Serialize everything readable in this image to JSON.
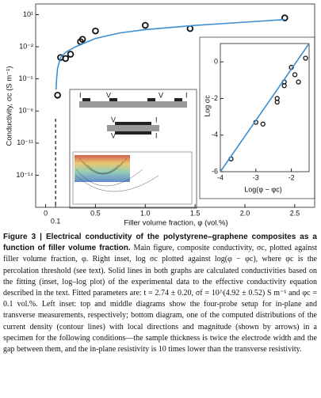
{
  "chart_data": [
    {
      "type": "scatter",
      "ylabel": "Conductivity, σc (S m⁻¹)",
      "xlabel": "Filler volume fraction, φ (vol.%)",
      "xlim": [
        -0.1,
        2.7
      ],
      "ylim": [
        1e-17,
        100
      ],
      "ylog": true,
      "xticks": [
        0,
        0.1,
        0.5,
        {
          "value": 1,
          "label": "1.0"
        },
        1.5,
        {
          "value": 2,
          "label": "2.0"
        },
        2.5
      ],
      "yticks": [
        {
          "value": 10,
          "label": "10¹"
        },
        {
          "value": 0.01,
          "label": "10⁻²"
        },
        {
          "value": 1e-05,
          "label": "10⁻⁵"
        },
        {
          "value": 1e-08,
          "label": "10⁻⁸"
        },
        {
          "value": 1e-11,
          "label": "10⁻¹¹"
        },
        {
          "value": 1e-14,
          "label": "10⁻¹⁴"
        }
      ],
      "series": [
        {
          "mode": "markers",
          "color": "#111111",
          "x": [
            0.12,
            0.15,
            0.2,
            0.25,
            0.35,
            0.37,
            0.5,
            1.0,
            1.45,
            2.4
          ],
          "values": [
            3e-07,
            0.001,
            0.0008,
            0.002,
            0.03,
            0.05,
            0.3,
            1,
            0.5,
            5
          ]
        },
        {
          "mode": "line",
          "color": "#3d8fd1",
          "x": [
            0.105,
            0.11,
            0.12,
            0.15,
            0.2,
            0.3,
            0.5,
            0.75,
            1.0,
            1.5,
            2.0,
            2.4
          ],
          "values": [
            1e-06,
            1e-05,
            0.0001,
            0.001,
            0.003,
            0.01,
            0.06,
            0.2,
            0.4,
            1,
            2,
            3.5
          ]
        }
      ]
    },
    {
      "type": "scatter",
      "ylabel": "Log σc",
      "xlabel": "Log(φ − φc)",
      "xlim": [
        -4,
        -1.5
      ],
      "ylim": [
        -6,
        1
      ],
      "xticks": [
        -4,
        -3,
        -2
      ],
      "yticks": [
        0,
        -2,
        -4,
        -6
      ],
      "series": [
        {
          "mode": "markers",
          "color": "#111111",
          "x": [
            -3.7,
            -3.0,
            -2.8,
            -2.4,
            -2.4,
            -2.2,
            -2.2,
            -2.0,
            -1.9,
            -1.8,
            -1.6
          ],
          "values": [
            -5.3,
            -3.3,
            -3.4,
            -2.2,
            -2.0,
            -1.3,
            -1.1,
            -0.3,
            -0.7,
            -1.1,
            0.2
          ]
        },
        {
          "mode": "line",
          "color": "#3d8fd1",
          "x": [
            -4,
            -1.5
          ],
          "values": [
            -6,
            1
          ]
        }
      ]
    }
  ],
  "diagram": {
    "top_labels": [
      "I",
      "V",
      "V",
      "I"
    ],
    "middle_labels": [
      "V",
      "I",
      "V",
      "I"
    ]
  },
  "caption": {
    "title": "Figure 3 | Electrical conductivity of the polystyrene–graphene composites as a function of filler volume fraction.",
    "body": "Main figure, composite conductivity, σc, plotted against filler volume fraction, φ. Right inset, log σc plotted against log(φ − φc), where φc is the percolation threshold (see text). Solid lines in both graphs are calculated conductivities based on the fitting (inset, log–log plot) of the experimental data to the effective conductivity equation described in the text. Fitted parameters are: t = 2.74 ± 0.20, σf = 10^(4.92 ± 0.52) S m⁻¹ and φc = 0.1 vol.%. Left inset: top and middle diagrams show the four-probe setup for in-plane and transverse measurements, respectively; bottom diagram, one of the computed distributions of the current density (contour lines) with local directions and magnitude (shown by arrows) in a specimen for the following conditions—the sample thickness is twice the electrode width and the gap between them, and the in-plane resistivity is 10 times lower than the transverse resistivity."
  }
}
